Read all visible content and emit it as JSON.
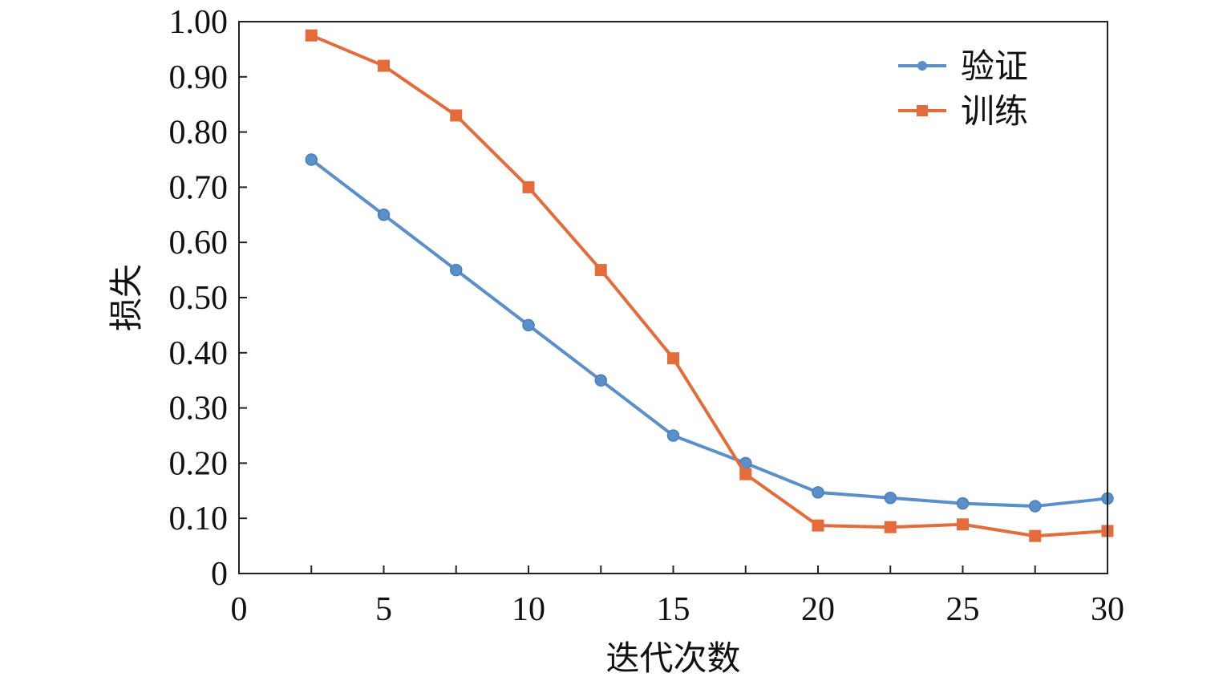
{
  "chart_data": {
    "type": "line",
    "title": "",
    "xlabel": "迭代次数",
    "ylabel": "损失",
    "xlim": [
      0,
      30
    ],
    "ylim": [
      0,
      1.0
    ],
    "xticks": [
      0,
      5,
      10,
      15,
      20,
      25,
      30
    ],
    "xtick_labels": [
      "0",
      "5",
      "10",
      "15",
      "20",
      "25",
      "30"
    ],
    "yticks": [
      0,
      0.1,
      0.2,
      0.3,
      0.4,
      0.5,
      0.6,
      0.7,
      0.8,
      0.9,
      1.0
    ],
    "ytick_labels": [
      "0",
      "0.10",
      "0.20",
      "0.30",
      "0.40",
      "0.50",
      "0.60",
      "0.70",
      "0.80",
      "0.90",
      "1.00"
    ],
    "grid": false,
    "legend": "top-right",
    "x": [
      2.5,
      5,
      7.5,
      10,
      12.5,
      15,
      17.5,
      20,
      22.5,
      25,
      27.5,
      30
    ],
    "series": [
      {
        "name": "验证",
        "color": "#5B8FC9",
        "marker": "circle",
        "values": [
          0.75,
          0.65,
          0.55,
          0.45,
          0.35,
          0.25,
          0.2,
          0.147,
          0.137,
          0.127,
          0.122,
          0.136
        ]
      },
      {
        "name": "训练",
        "color": "#E46C3A",
        "marker": "square",
        "values": [
          0.975,
          0.92,
          0.83,
          0.7,
          0.55,
          0.39,
          0.18,
          0.087,
          0.084,
          0.089,
          0.068,
          0.077
        ]
      }
    ]
  }
}
